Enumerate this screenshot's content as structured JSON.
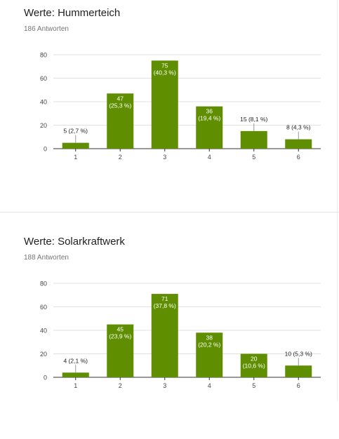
{
  "cards": [
    {
      "title": "Werte: Hummerteich",
      "responses": "186 Antworten"
    },
    {
      "title": "Werte: Solarkraftwerk",
      "responses": "188 Antworten"
    }
  ],
  "colors": {
    "bar": "#5f8f00",
    "grid": "#e0e0e0",
    "axis": "#333333",
    "tick_text": "#444444",
    "label_inside": "#ffffff",
    "label_outside": "#222222"
  },
  "chart_data": [
    {
      "type": "bar",
      "categories": [
        "1",
        "2",
        "3",
        "4",
        "5",
        "6"
      ],
      "values": [
        5,
        47,
        75,
        36,
        15,
        8
      ],
      "data_labels": [
        [
          "5 (2,7 %)"
        ],
        [
          "47",
          "(25,3 %)"
        ],
        [
          "75",
          "(40,3 %)"
        ],
        [
          "36",
          "(19,4 %)"
        ],
        [
          "15",
          "(8,1 %)"
        ],
        [
          "8 (4,3 %)"
        ]
      ],
      "yticks": [
        "0",
        "20",
        "40",
        "60",
        "80"
      ],
      "ylim": [
        0,
        80
      ],
      "grid": true
    },
    {
      "type": "bar",
      "categories": [
        "1",
        "2",
        "3",
        "4",
        "5",
        "6"
      ],
      "values": [
        4,
        45,
        71,
        38,
        20,
        10
      ],
      "data_labels": [
        [
          "4 (2,1 %)"
        ],
        [
          "45",
          "(23,9 %)"
        ],
        [
          "71",
          "(37,8 %)"
        ],
        [
          "38",
          "(20,2 %)"
        ],
        [
          "20",
          "(10,6 %)"
        ],
        [
          "10 (5,3 %)"
        ]
      ],
      "yticks": [
        "0",
        "20",
        "40",
        "60",
        "80"
      ],
      "ylim": [
        0,
        80
      ],
      "grid": true
    }
  ]
}
